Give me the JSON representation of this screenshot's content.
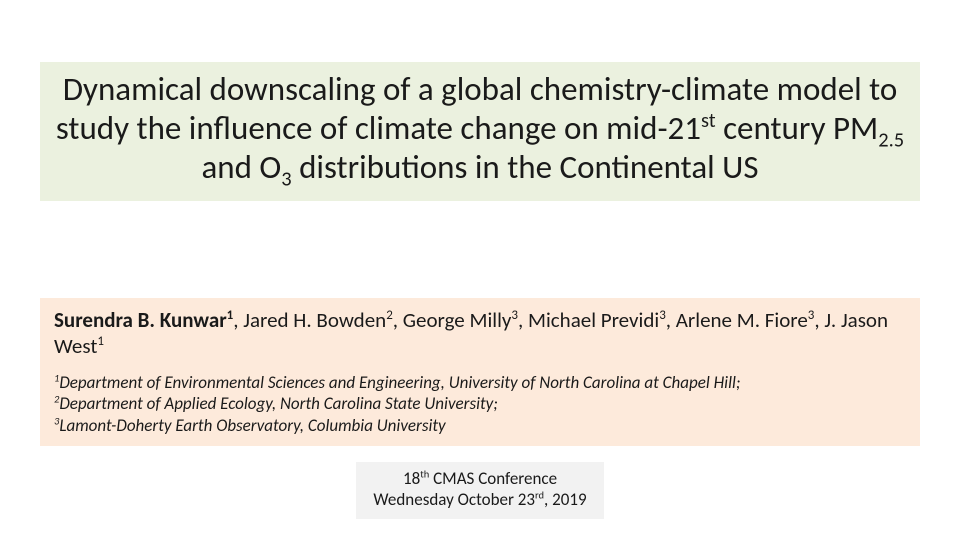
{
  "colors": {
    "title_bg": "#ebf1df",
    "authors_bg": "#fdeadb",
    "affil_bg": "#fdeadb",
    "conf_bg": "#f2f2f2",
    "text": "#1a1a1a"
  },
  "title": {
    "pre1": "Dynamical downscaling of a global chemistry-climate model to study the influence of climate change on mid-21",
    "sup1": "st",
    "mid1": " century PM",
    "sub1": "2.5",
    "mid2": " and O",
    "sub2": "3",
    "post": " distributions in the Continental US",
    "fontsize": 33
  },
  "authors": {
    "bold_name": "Surendra B. Kunwar",
    "bold_sup": "1",
    "a2": ", Jared H. Bowden",
    "a2s": "2",
    "a3": ", George Milly",
    "a3s": "3",
    "a4": ", Michael Previdi",
    "a4s": "3",
    "a5": ", Arlene M. Fiore",
    "a5s": "3",
    "a6": ", J. Jason West",
    "a6s": "1",
    "fontsize": 21
  },
  "affiliations": {
    "l1s": "1",
    "l1": "Department of Environmental Sciences and Engineering, University of North Carolina at Chapel Hill;",
    "l2s": "2",
    "l2": "Department of Applied Ecology, North Carolina State University;",
    "l3s": "3",
    "l3": "Lamont-Doherty Earth Observatory, Columbia University",
    "fontsize": 17
  },
  "conference": {
    "l1a": "18",
    "l1s": "th",
    "l1b": " CMAS Conference",
    "l2a": "Wednesday October 23",
    "l2s": "rd",
    "l2b": ", 2019",
    "fontsize": 17
  }
}
